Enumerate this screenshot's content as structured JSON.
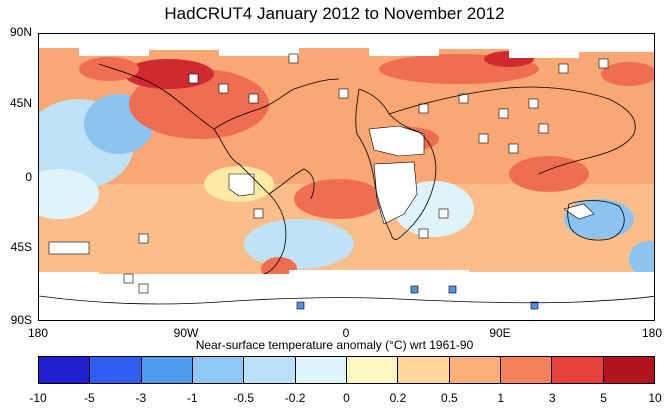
{
  "title": "HadCRUT4 January 2012 to November 2012",
  "map": {
    "lat_labels": [
      "90N",
      "45N",
      "0",
      "45S",
      "90S"
    ],
    "lon_labels": [
      "180",
      "90W",
      "0",
      "90E",
      "180"
    ]
  },
  "colorbar": {
    "title": "Near-surface temperature anomaly (°C) wrt 1961-90",
    "ticks": [
      "-10",
      "-5",
      "-3",
      "-1",
      "-0.5",
      "-0.2",
      "0",
      "0.2",
      "0.5",
      "1",
      "3",
      "5",
      "10"
    ],
    "colors": [
      "#1f1fcf",
      "#2e5ff0",
      "#4f9bf0",
      "#8fc7f5",
      "#b9e2f8",
      "#dff3fb",
      "#fff7bf",
      "#ffd79a",
      "#fdb078",
      "#f7815a",
      "#e8403a",
      "#b2141e"
    ]
  },
  "colors": {
    "warm_mid": "#f9a775",
    "warm_high": "#ef6e52",
    "warm_extreme": "#cf2a30",
    "cool_light": "#bfe3f6",
    "cool_mid": "#8cc3ef",
    "cool_strong": "#4d93e6",
    "near_zero": "#ffeaa5",
    "missing": "#ffffff"
  }
}
